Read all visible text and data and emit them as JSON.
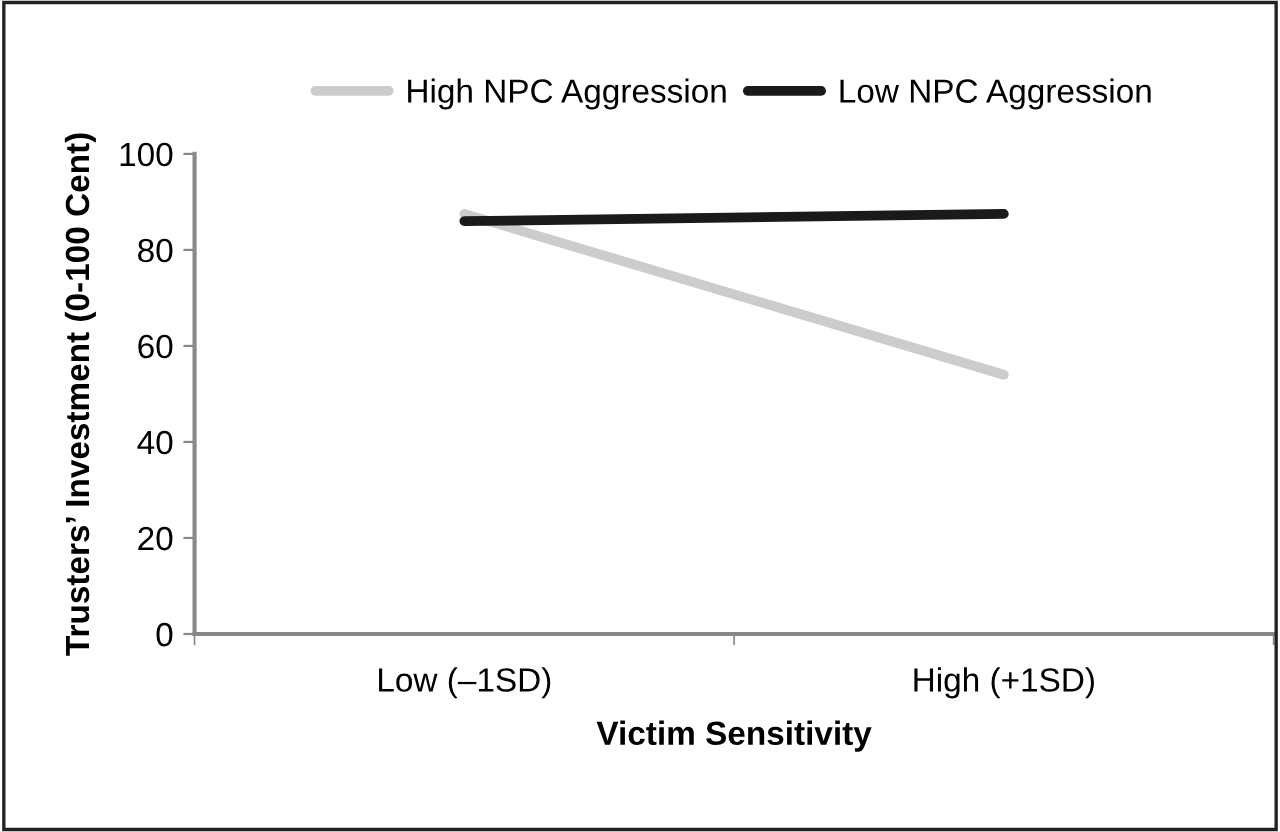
{
  "chart_data": {
    "type": "line",
    "xlabel": "Victim Sensitivity",
    "ylabel": "Trusters’ Investment (0-100 Cent)",
    "categories": [
      "Low (–1SD)",
      "High (+1SD)"
    ],
    "series": [
      {
        "name": "High NPC Aggression",
        "color": "#cccccc",
        "values": [
          87.5,
          54
        ]
      },
      {
        "name": "Low NPC Aggression",
        "color": "#1a1a1a",
        "values": [
          86,
          87.5
        ]
      }
    ],
    "ylim": [
      0,
      100
    ],
    "yticks": [
      0,
      20,
      40,
      60,
      80,
      100
    ],
    "grid": false,
    "legend": "top",
    "marker": "none",
    "line_style": "solid"
  }
}
